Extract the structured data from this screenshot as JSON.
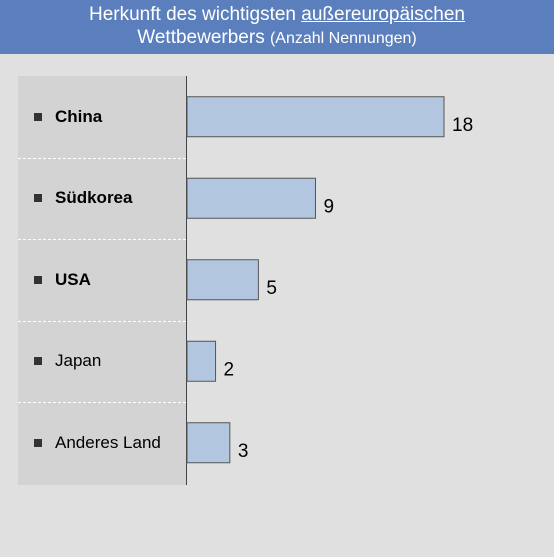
{
  "header": {
    "title_part1": "Herkunft des wichtigsten ",
    "title_underlined": "außereuropäischen",
    "title_line2": "Wettbewerbers ",
    "title_sub": "(Anzahl Nennungen)"
  },
  "chart_data": {
    "type": "bar",
    "orientation": "horizontal",
    "title": "Herkunft des wichtigsten außereuropäischen Wettbewerbers (Anzahl Nennungen)",
    "categories": [
      "China",
      "Südkorea",
      "USA",
      "Japan",
      "Anderes Land"
    ],
    "values": [
      18,
      9,
      5,
      2,
      3
    ],
    "bold": [
      true,
      true,
      true,
      false,
      false
    ],
    "xlim": [
      0,
      18
    ],
    "grid": false,
    "colors": {
      "bar_fill": "#b3c6e0",
      "bar_stroke": "#555555",
      "header_bg": "#5b7fbd"
    }
  }
}
